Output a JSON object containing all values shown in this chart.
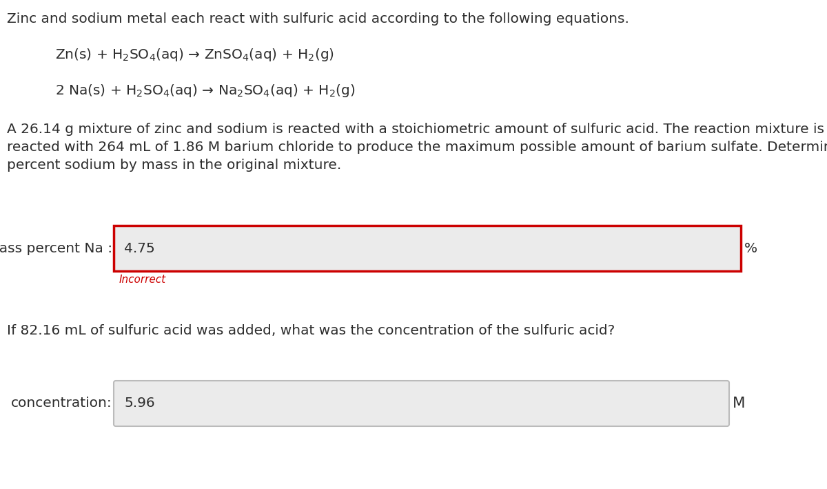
{
  "bg_color": "#ffffff",
  "text_color": "#2d2d2d",
  "title_line": "Zinc and sodium metal each react with sulfuric acid according to the following equations.",
  "eq1": "Zn(s) + H$_2$SO$_4$(aq) → ZnSO$_4$(aq) + H$_2$(g)",
  "eq2": "2 Na(s) + H$_2$SO$_4$(aq) → Na$_2$SO$_4$(aq) + H$_2$(g)",
  "para1": "A 26.14 g mixture of zinc and sodium is reacted with a stoichiometric amount of sulfuric acid. The reaction mixture is then",
  "para2": "reacted with 264 mL of 1.86 M barium chloride to produce the maximum possible amount of barium sulfate. Determine the",
  "para3": "percent sodium by mass in the original mixture.",
  "label1": "mass percent Na :",
  "value1": "4.75",
  "unit1": "%",
  "incorrect_text": "Incorrect",
  "incorrect_color": "#cc0000",
  "question2": "If 82.16 mL of sulfuric acid was added, what was the concentration of the sulfuric acid?",
  "label2": "concentration:",
  "value2": "5.96",
  "unit2": "M",
  "input_bg": "#ebebeb",
  "input_border_correct": "#bbbbbb",
  "input_border_incorrect": "#cc0000",
  "font_size_main": 14.5,
  "font_size_eq": 14.5
}
